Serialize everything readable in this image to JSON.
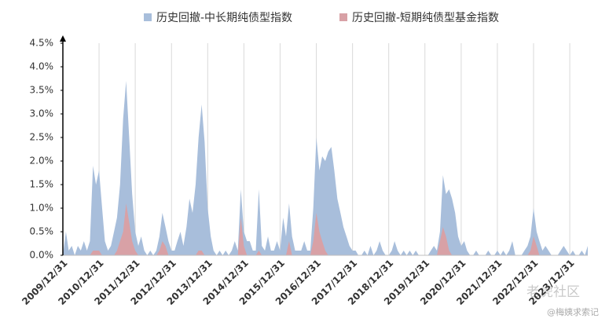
{
  "chart_data": {
    "type": "area",
    "legend_position": "top",
    "x": [
      "2009/12/31",
      "2010/01/31",
      "2010/02/28",
      "2010/03/31",
      "2010/04/30",
      "2010/05/31",
      "2010/06/30",
      "2010/07/31",
      "2010/08/31",
      "2010/09/30",
      "2010/10/31",
      "2010/11/30",
      "2010/12/31",
      "2011/01/31",
      "2011/02/28",
      "2011/03/31",
      "2011/04/30",
      "2011/05/31",
      "2011/06/30",
      "2011/07/31",
      "2011/08/31",
      "2011/09/30",
      "2011/10/31",
      "2011/11/30",
      "2011/12/31",
      "2012/01/31",
      "2012/02/29",
      "2012/03/31",
      "2012/04/30",
      "2012/05/31",
      "2012/06/30",
      "2012/07/31",
      "2012/08/31",
      "2012/09/30",
      "2012/10/31",
      "2012/11/30",
      "2012/12/31",
      "2013/01/31",
      "2013/02/28",
      "2013/03/31",
      "2013/04/30",
      "2013/05/31",
      "2013/06/30",
      "2013/07/31",
      "2013/08/31",
      "2013/09/30",
      "2013/10/31",
      "2013/11/30",
      "2013/12/31",
      "2014/01/31",
      "2014/02/28",
      "2014/03/31",
      "2014/04/30",
      "2014/05/31",
      "2014/06/30",
      "2014/07/31",
      "2014/08/31",
      "2014/09/30",
      "2014/10/31",
      "2014/11/30",
      "2014/12/31",
      "2015/01/31",
      "2015/02/28",
      "2015/03/31",
      "2015/04/30",
      "2015/05/31",
      "2015/06/30",
      "2015/07/31",
      "2015/08/31",
      "2015/09/30",
      "2015/10/31",
      "2015/11/30",
      "2015/12/31",
      "2016/01/31",
      "2016/02/29",
      "2016/03/31",
      "2016/04/30",
      "2016/05/31",
      "2016/06/30",
      "2016/07/31",
      "2016/08/31",
      "2016/09/30",
      "2016/10/31",
      "2016/11/30",
      "2016/12/31",
      "2017/01/31",
      "2017/02/28",
      "2017/03/31",
      "2017/04/30",
      "2017/05/31",
      "2017/06/30",
      "2017/07/31",
      "2017/08/31",
      "2017/09/30",
      "2017/10/31",
      "2017/11/30",
      "2017/12/31",
      "2018/01/31",
      "2018/02/28",
      "2018/03/31",
      "2018/04/30",
      "2018/05/31",
      "2018/06/30",
      "2018/07/31",
      "2018/08/31",
      "2018/09/30",
      "2018/10/31",
      "2018/11/30",
      "2018/12/31",
      "2019/01/31",
      "2019/02/28",
      "2019/03/31",
      "2019/04/30",
      "2019/05/31",
      "2019/06/30",
      "2019/07/31",
      "2019/08/31",
      "2019/09/30",
      "2019/10/31",
      "2019/11/30",
      "2019/12/31",
      "2020/01/31",
      "2020/02/29",
      "2020/03/31",
      "2020/04/30",
      "2020/05/31",
      "2020/06/30",
      "2020/07/31",
      "2020/08/31",
      "2020/09/30",
      "2020/10/31",
      "2020/11/30",
      "2020/12/31",
      "2021/01/31",
      "2021/02/28",
      "2021/03/31",
      "2021/04/30",
      "2021/05/31",
      "2021/06/30",
      "2021/07/31",
      "2021/08/31",
      "2021/09/30",
      "2021/10/31",
      "2021/11/30",
      "2021/12/31",
      "2022/01/31",
      "2022/02/28",
      "2022/03/31",
      "2022/04/30",
      "2022/05/31",
      "2022/06/30",
      "2022/07/31",
      "2022/08/31",
      "2022/09/30",
      "2022/10/31",
      "2022/11/30",
      "2022/12/31",
      "2023/01/31",
      "2023/02/28",
      "2023/03/31",
      "2023/04/30",
      "2023/05/31",
      "2023/06/30",
      "2023/07/31",
      "2023/08/31",
      "2023/09/30",
      "2023/10/31",
      "2023/11/30",
      "2023/12/31",
      "2024/01/31",
      "2024/02/29",
      "2024/03/31",
      "2024/04/30",
      "2024/05/31",
      "2024/06/30"
    ],
    "series": [
      {
        "name": "历史回撤-中长期纯债型指数",
        "color": "#a8bedb",
        "values": [
          0,
          0.5,
          0.1,
          0.2,
          0,
          0.2,
          0.1,
          0.3,
          0.1,
          0.3,
          1.9,
          1.5,
          1.8,
          1.0,
          0.3,
          0.1,
          0.2,
          0.5,
          0.8,
          1.5,
          2.9,
          3.7,
          2.5,
          1.3,
          0.5,
          0.2,
          0.4,
          0.1,
          0,
          0.1,
          0,
          0.1,
          0.4,
          0.9,
          0.6,
          0.3,
          0.1,
          0.1,
          0.3,
          0.5,
          0.2,
          0.6,
          1.2,
          0.9,
          1.5,
          2.5,
          3.2,
          2.4,
          1.0,
          0.4,
          0.1,
          0,
          0.1,
          0,
          0.1,
          0,
          0.1,
          0.3,
          0.1,
          1.4,
          0.5,
          0.3,
          0.3,
          0.1,
          0.1,
          1.4,
          0.2,
          0.1,
          0.4,
          0.1,
          0.1,
          0.3,
          0.1,
          0.8,
          0.4,
          1.1,
          0.4,
          0.1,
          0.1,
          0.1,
          0.3,
          0.1,
          0.1,
          1.0,
          2.5,
          1.8,
          2.1,
          2.0,
          2.2,
          2.3,
          1.8,
          1.2,
          0.9,
          0.6,
          0.4,
          0.2,
          0.1,
          0.1,
          0,
          0,
          0.1,
          0,
          0.2,
          0,
          0.1,
          0.3,
          0.1,
          0,
          0,
          0.1,
          0.3,
          0.1,
          0,
          0.1,
          0,
          0.1,
          0,
          0.1,
          0,
          0,
          0,
          0,
          0.1,
          0.2,
          0.1,
          0.5,
          1.7,
          1.3,
          1.4,
          1.2,
          0.9,
          0.4,
          0.2,
          0.3,
          0.1,
          0,
          0,
          0.1,
          0,
          0,
          0,
          0.1,
          0,
          0,
          0.1,
          0,
          0.1,
          0,
          0.1,
          0.3,
          0,
          0,
          0,
          0.1,
          0.2,
          0.4,
          1.0,
          0.5,
          0.3,
          0.1,
          0.2,
          0.1,
          0,
          0,
          0,
          0.1,
          0.2,
          0.1,
          0,
          0.1,
          0,
          0,
          0.1,
          0,
          0.2
        ]
      },
      {
        "name": "历史回撤-短期纯债型基金指数",
        "color": "#d8a1a6",
        "values": [
          0,
          0,
          0,
          0,
          0,
          0,
          0,
          0,
          0,
          0,
          0.1,
          0.1,
          0.1,
          0,
          0,
          0,
          0,
          0,
          0.1,
          0.3,
          0.5,
          1.1,
          0.7,
          0.3,
          0.1,
          0,
          0,
          0,
          0,
          0,
          0,
          0,
          0.1,
          0.3,
          0.2,
          0,
          0,
          0,
          0,
          0,
          0,
          0,
          0,
          0,
          0,
          0.1,
          0.1,
          0,
          0,
          0,
          0,
          0,
          0,
          0,
          0,
          0,
          0,
          0,
          0,
          0.8,
          0.2,
          0,
          0,
          0,
          0,
          0.1,
          0,
          0,
          0,
          0,
          0,
          0,
          0,
          0,
          0,
          0.3,
          0,
          0,
          0,
          0,
          0,
          0,
          0,
          0.3,
          0.9,
          0.5,
          0.3,
          0.1,
          0,
          0,
          0,
          0,
          0,
          0,
          0,
          0,
          0,
          0,
          0,
          0,
          0,
          0,
          0,
          0,
          0,
          0,
          0,
          0,
          0,
          0,
          0,
          0,
          0,
          0,
          0,
          0,
          0,
          0,
          0,
          0,
          0,
          0,
          0,
          0,
          0,
          0.3,
          0.6,
          0.4,
          0.1,
          0,
          0,
          0,
          0,
          0,
          0,
          0,
          0,
          0,
          0,
          0,
          0,
          0,
          0,
          0,
          0,
          0,
          0,
          0,
          0,
          0,
          0,
          0,
          0,
          0,
          0,
          0.1,
          0.4,
          0.2,
          0,
          0,
          0,
          0,
          0,
          0,
          0,
          0,
          0,
          0,
          0,
          0,
          0,
          0,
          0,
          0,
          0
        ]
      }
    ],
    "xlim": [
      "2009/12/31",
      "2024/06/30"
    ],
    "xticks": [
      "2009/12/31",
      "2010/12/31",
      "2011/12/31",
      "2012/12/31",
      "2013/12/31",
      "2014/12/31",
      "2015/12/31",
      "2016/12/31",
      "2017/12/31",
      "2018/12/31",
      "2019/12/31",
      "2020/12/31",
      "2021/12/31",
      "2022/12/31",
      "2023/12/31"
    ],
    "ylim": [
      0,
      4.5
    ],
    "yticks": [
      {
        "value": 0,
        "label": "0.0%"
      },
      {
        "value": 0.5,
        "label": "0.5%"
      },
      {
        "value": 1,
        "label": "1.0%"
      },
      {
        "value": 1.5,
        "label": "1.5%"
      },
      {
        "value": 2,
        "label": "2.0%"
      },
      {
        "value": 2.5,
        "label": "2.5%"
      },
      {
        "value": 3,
        "label": "3.0%"
      },
      {
        "value": 3.5,
        "label": "3.5%"
      },
      {
        "value": 4,
        "label": "4.0%"
      },
      {
        "value": 4.5,
        "label": "4.5%"
      }
    ],
    "grid": "x"
  },
  "watermark": {
    "brand": "老虎社区",
    "author": "@梅姨求索记"
  }
}
